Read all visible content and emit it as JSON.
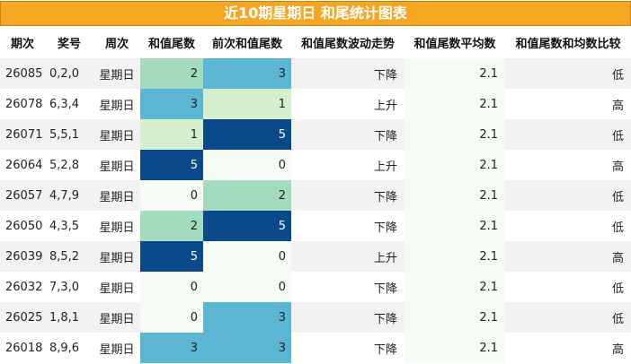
{
  "title": "近10期星期日 和尾统计图表",
  "columns": [
    "期次",
    "奖号",
    "周次",
    "和值尾数",
    "前次和值尾数",
    "和值尾数波动走势",
    "和值尾数平均数",
    "和值尾数和均数比较"
  ],
  "rows": [
    {
      "issue": "26085",
      "nums": "0,2,0",
      "week": "星期日",
      "tail": "2",
      "prev_tail": "3",
      "trend": "下降",
      "avg": "2.1",
      "cmp": "低"
    },
    {
      "issue": "26078",
      "nums": "6,3,4",
      "week": "星期日",
      "tail": "3",
      "prev_tail": "1",
      "trend": "上升",
      "avg": "2.1",
      "cmp": "高"
    },
    {
      "issue": "26071",
      "nums": "5,5,1",
      "week": "星期日",
      "tail": "1",
      "prev_tail": "5",
      "trend": "下降",
      "avg": "2.1",
      "cmp": "低"
    },
    {
      "issue": "26064",
      "nums": "5,2,8",
      "week": "星期日",
      "tail": "5",
      "prev_tail": "0",
      "trend": "上升",
      "avg": "2.1",
      "cmp": "高"
    },
    {
      "issue": "26057",
      "nums": "4,7,9",
      "week": "星期日",
      "tail": "0",
      "prev_tail": "2",
      "trend": "下降",
      "avg": "2.1",
      "cmp": "低"
    },
    {
      "issue": "26050",
      "nums": "4,3,5",
      "week": "星期日",
      "tail": "2",
      "prev_tail": "5",
      "trend": "下降",
      "avg": "2.1",
      "cmp": "低"
    },
    {
      "issue": "26039",
      "nums": "8,5,2",
      "week": "星期日",
      "tail": "5",
      "prev_tail": "0",
      "trend": "上升",
      "avg": "2.1",
      "cmp": "高"
    },
    {
      "issue": "26032",
      "nums": "7,3,0",
      "week": "星期日",
      "tail": "0",
      "prev_tail": "0",
      "trend": "下降",
      "avg": "2.1",
      "cmp": "低"
    },
    {
      "issue": "26025",
      "nums": "1,8,1",
      "week": "星期日",
      "tail": "0",
      "prev_tail": "3",
      "trend": "下降",
      "avg": "2.1",
      "cmp": "低"
    },
    {
      "issue": "26018",
      "nums": "8,9,6",
      "week": "星期日",
      "tail": "3",
      "prev_tail": "3",
      "trend": "下降",
      "avg": "2.1",
      "cmp": "高"
    }
  ],
  "heat_colors": {
    "0": "#f6fbf4",
    "1": "#d4efcd",
    "2": "#a3dbbe",
    "3": "#5ab6d1",
    "5": "#0b4a8a"
  },
  "title_color": "#f5a623"
}
